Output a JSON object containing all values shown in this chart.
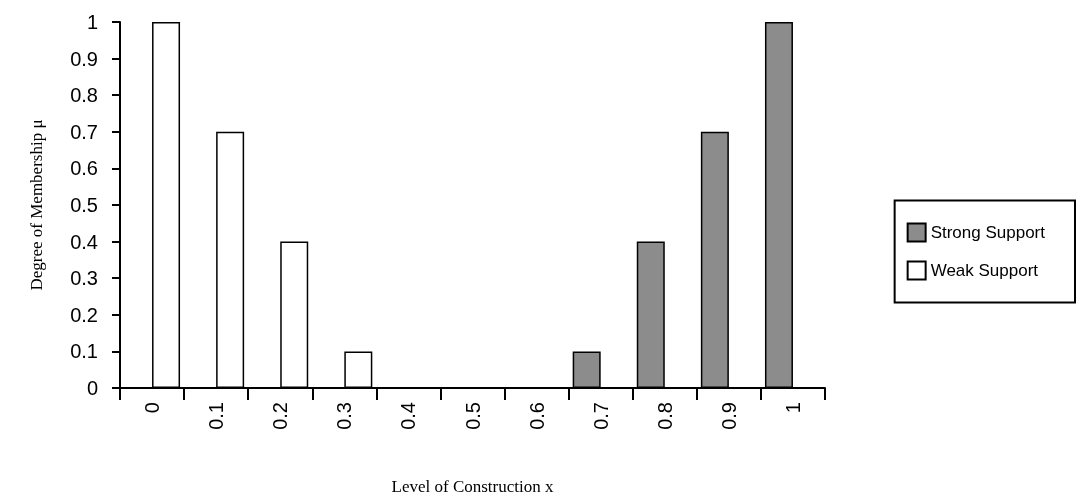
{
  "chart_data": {
    "type": "bar",
    "xlabel": "Level of Construction x",
    "ylabel": "Degree of Membership μ",
    "categories": [
      "0",
      "0.1",
      "0.2",
      "0.3",
      "0.4",
      "0.5",
      "0.6",
      "0.7",
      "0.8",
      "0.9",
      "1"
    ],
    "series": [
      {
        "name": "Strong Support",
        "color": "#8c8c8c",
        "values": [
          0,
          0,
          0,
          0,
          0,
          0,
          0,
          0.1,
          0.4,
          0.7,
          1
        ]
      },
      {
        "name": "Weak Support",
        "color": "#ffffff",
        "values": [
          1,
          0.7,
          0.4,
          0.1,
          0,
          0,
          0,
          0,
          0,
          0,
          0
        ]
      }
    ],
    "ylim": [
      0,
      1
    ],
    "yticks": [
      0,
      0.1,
      0.2,
      0.3,
      0.4,
      0.5,
      0.6,
      0.7,
      0.8,
      0.9,
      1
    ],
    "grid": false,
    "legend": "right"
  }
}
